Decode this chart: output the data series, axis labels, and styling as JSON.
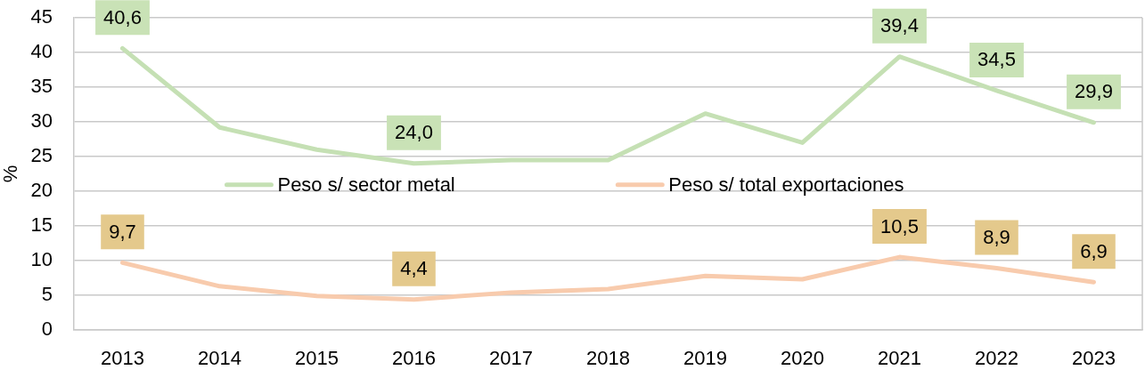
{
  "chart_data": {
    "type": "line",
    "ylabel": "%",
    "categories": [
      "2013",
      "2014",
      "2015",
      "2016",
      "2017",
      "2018",
      "2019",
      "2020",
      "2021",
      "2022",
      "2023"
    ],
    "series": [
      {
        "name": "Peso s/ sector metal",
        "color": "#c5e0b4",
        "values": [
          40.6,
          29.2,
          26.0,
          24.0,
          24.5,
          24.5,
          31.2,
          27.0,
          39.4,
          34.5,
          29.9
        ],
        "value_labels": [
          "40,6",
          null,
          null,
          "24,0",
          null,
          null,
          null,
          null,
          "39,4",
          "34,5",
          "29,9"
        ]
      },
      {
        "name": "Peso s/ total exportaciones",
        "color": "#f8cbad",
        "values": [
          9.7,
          6.3,
          4.9,
          4.4,
          5.4,
          5.9,
          7.8,
          7.3,
          10.5,
          8.9,
          6.9
        ],
        "value_labels": [
          "9,7",
          null,
          null,
          "4,4",
          null,
          null,
          null,
          null,
          "10,5",
          "8,9",
          "6,9"
        ]
      }
    ],
    "ylim": [
      0,
      45
    ],
    "yticks": [
      0,
      5,
      10,
      15,
      20,
      25,
      30,
      35,
      40,
      45
    ],
    "grid": "y",
    "legend": "center",
    "marker": "none",
    "line_style": "solid"
  }
}
